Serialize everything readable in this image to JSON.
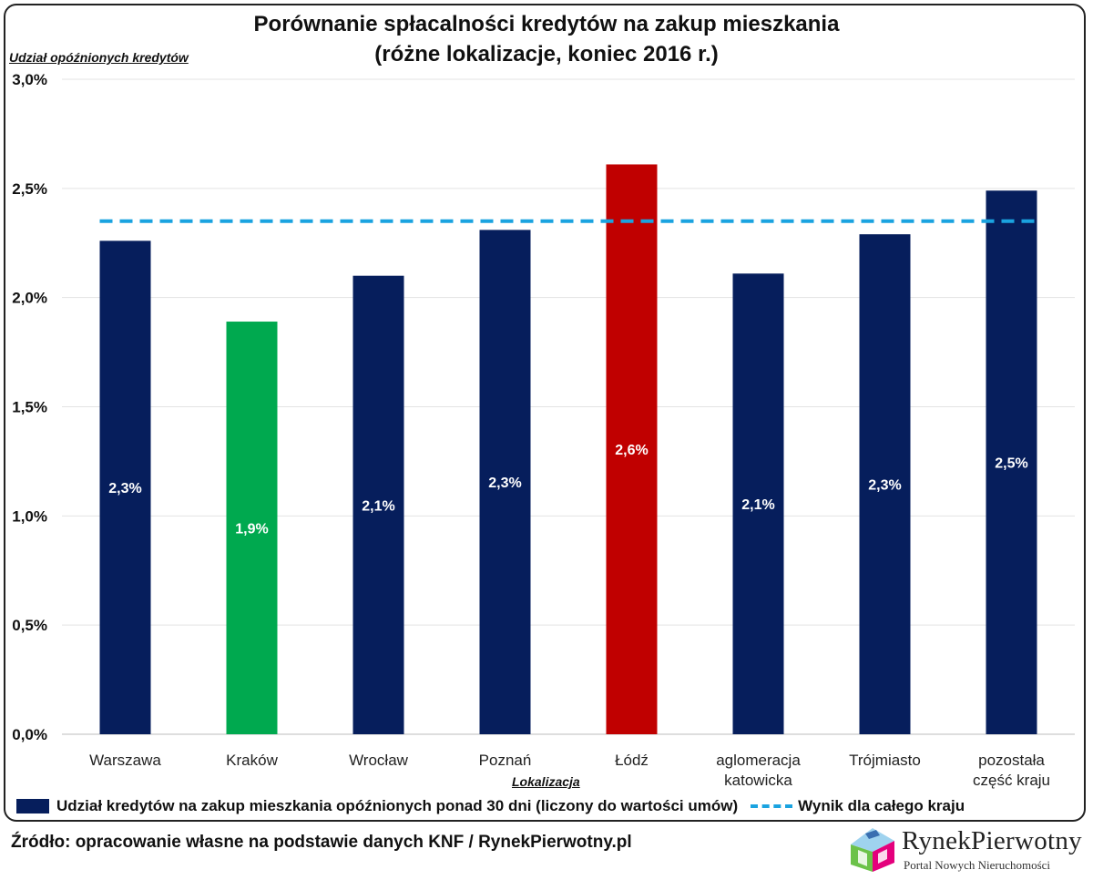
{
  "chart_data": {
    "type": "bar",
    "title": "Porównanie spłacalności kredytów na zakup mieszkania",
    "subtitle": "(różne lokalizacje, koniec 2016 r.)",
    "ylabel": "Udział opóźnionych kredytów",
    "xlabel": "Lokalizacja",
    "ylim": [
      0,
      3.0
    ],
    "yticks": [
      "0,0%",
      "0,5%",
      "1,0%",
      "1,5%",
      "2,0%",
      "2,5%",
      "3,0%"
    ],
    "ytick_values": [
      0,
      0.5,
      1.0,
      1.5,
      2.0,
      2.5,
      3.0
    ],
    "grid": true,
    "categories": [
      [
        "Warszawa"
      ],
      [
        "Kraków"
      ],
      [
        "Wrocław"
      ],
      [
        "Poznań"
      ],
      [
        "Łódź"
      ],
      [
        "aglomeracja",
        "katowicka"
      ],
      [
        "Trójmiasto"
      ],
      [
        "pozostała",
        "część kraju"
      ]
    ],
    "values": [
      2.26,
      1.89,
      2.1,
      2.31,
      2.61,
      2.11,
      2.29,
      2.49
    ],
    "data_labels": [
      "2,3%",
      "1,9%",
      "2,1%",
      "2,3%",
      "2,6%",
      "2,1%",
      "2,3%",
      "2,5%"
    ],
    "bar_colors": [
      "#061e5c",
      "#00a94f",
      "#061e5c",
      "#061e5c",
      "#c00000",
      "#061e5c",
      "#061e5c",
      "#061e5c"
    ],
    "series_name": "Udział kredytów na zakup mieszkania opóźnionych ponad 30 dni (liczony do wartości umów)",
    "reference_line": {
      "name": "Wynik dla całego kraju",
      "value": 2.35,
      "color": "#1aa3e0",
      "style": "dashed"
    },
    "legend_position": "bottom"
  },
  "source": "Źródło: opracowanie własne na podstawie danych KNF / RynekPierwotny.pl",
  "logo": {
    "name": "RynekPierwotny",
    "tagline": "Portal Nowych Nieruchomości"
  }
}
